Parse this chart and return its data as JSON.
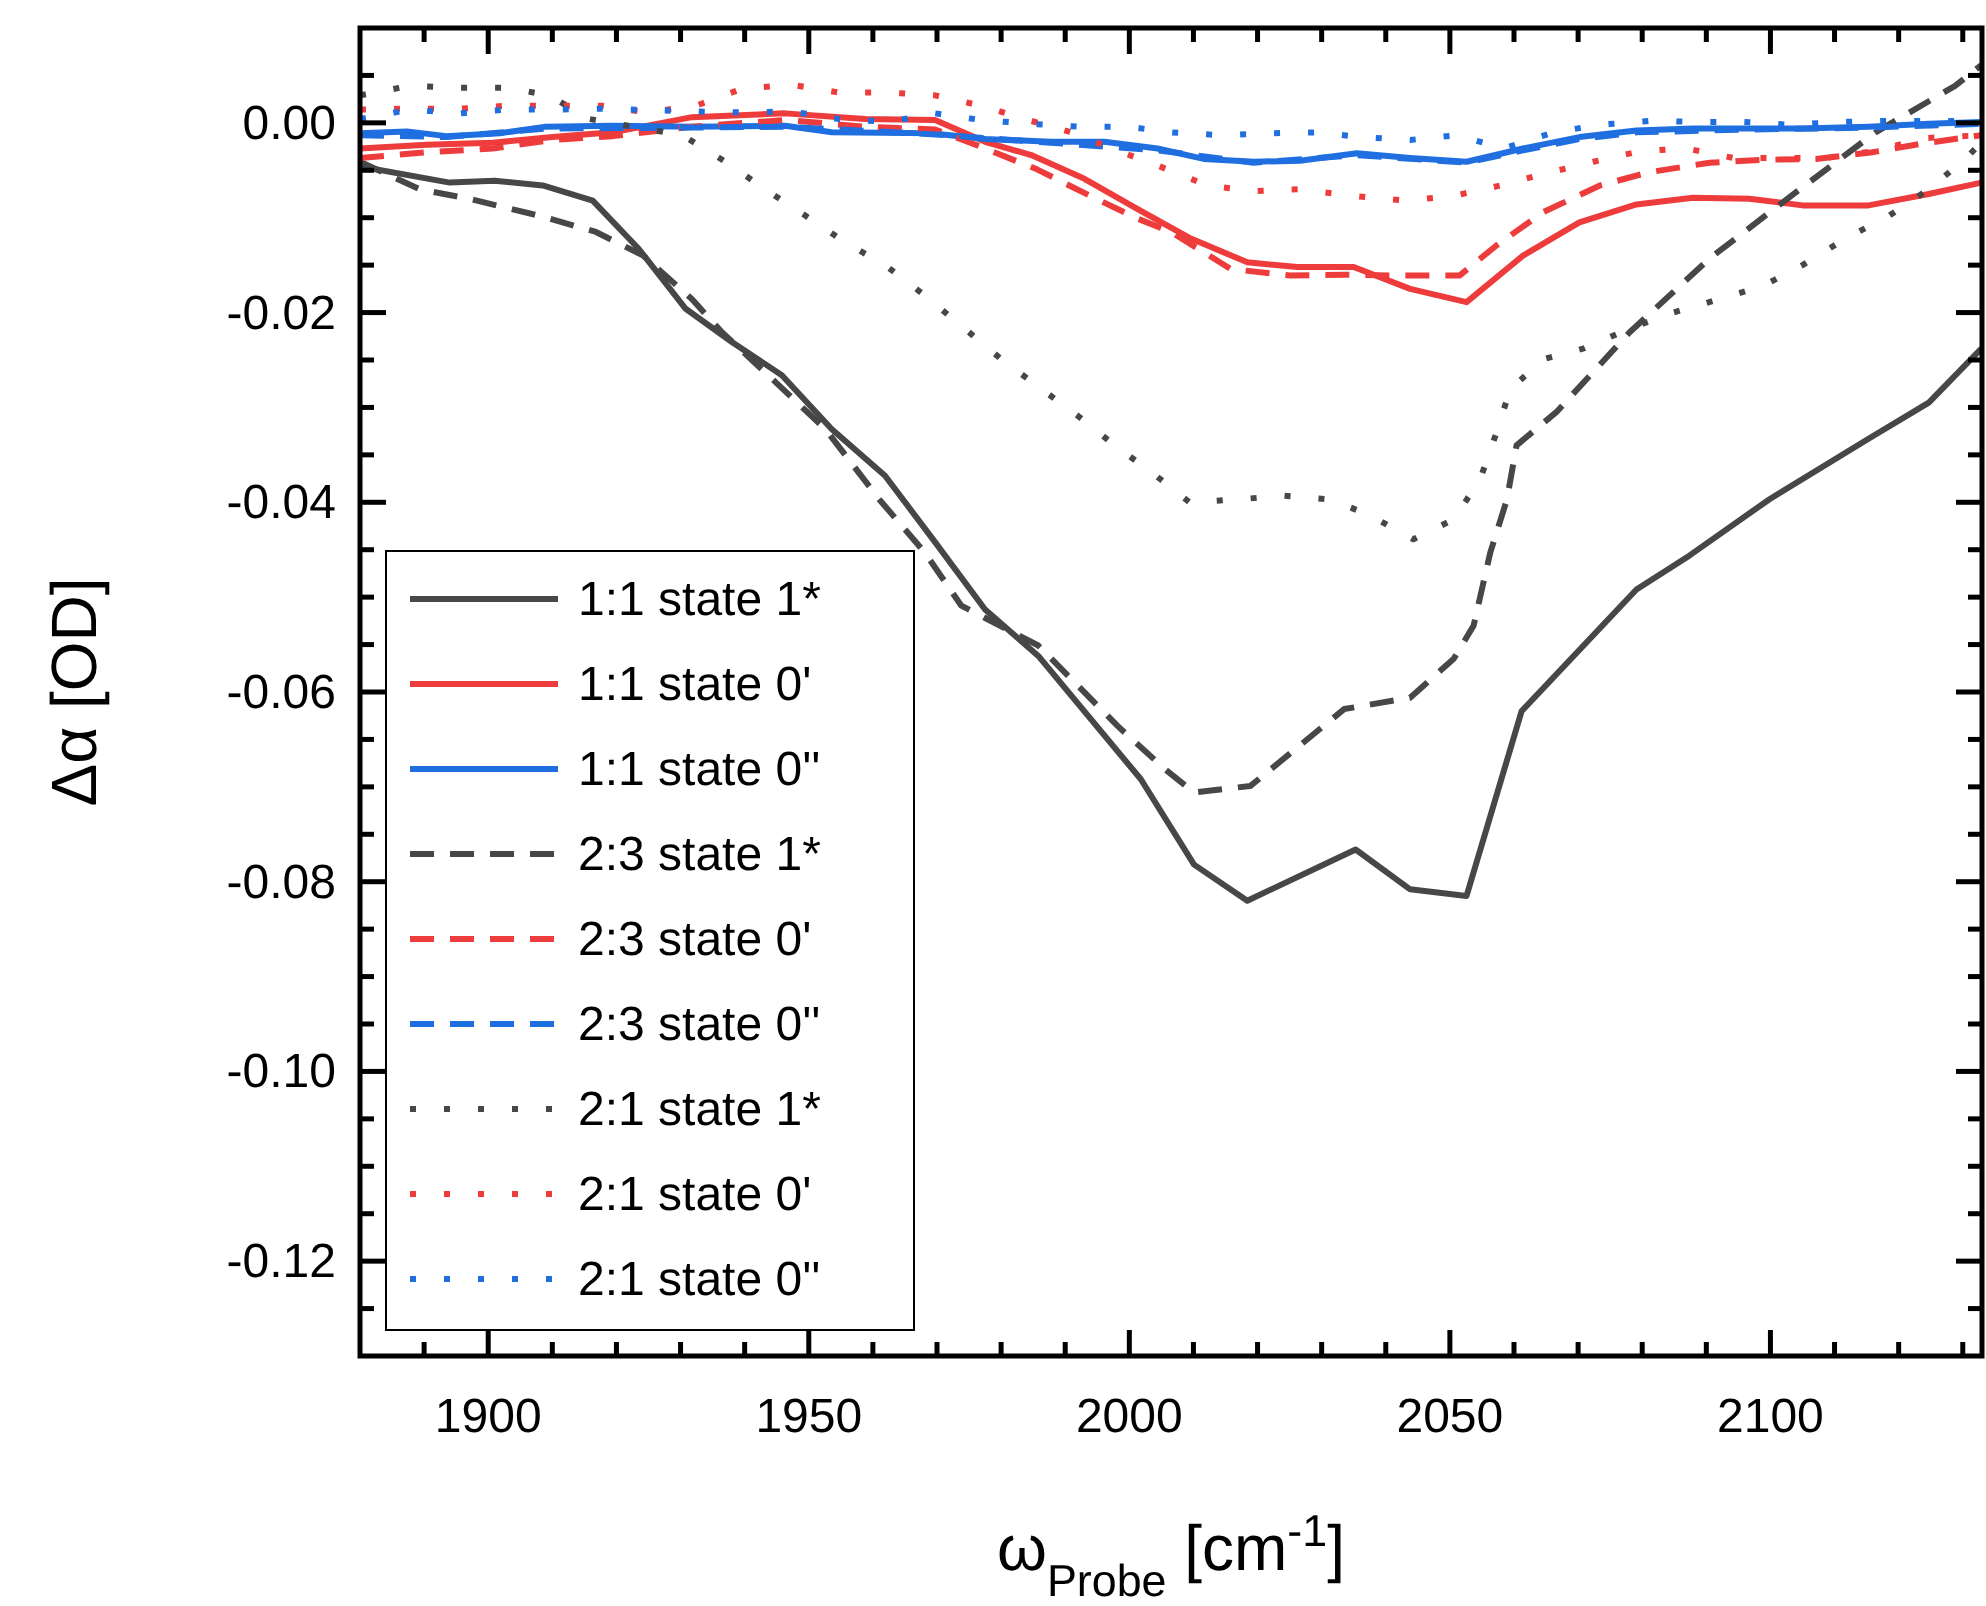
{
  "chart_data": {
    "type": "line",
    "xlabel": "ω$_{Probe}$ [cm$^{-1}$]",
    "ylabel": "Δα [OD]",
    "xlim": [
      1880,
      2133
    ],
    "ylim": [
      -0.13,
      0.01
    ],
    "xticks": [
      {
        "value": 1890,
        "label": null
      },
      1900,
      {
        "value": 1910,
        "label": null
      },
      {
        "value": 1920,
        "label": null
      },
      {
        "value": 1930,
        "label": null
      },
      {
        "value": 1940,
        "label": null
      },
      1950,
      {
        "value": 1960,
        "label": null
      },
      {
        "value": 1970,
        "label": null
      },
      {
        "value": 1980,
        "label": null
      },
      {
        "value": 1990,
        "label": null
      },
      2000,
      {
        "value": 2010,
        "label": null
      },
      {
        "value": 2020,
        "label": null
      },
      {
        "value": 2030,
        "label": null
      },
      {
        "value": 2040,
        "label": null
      },
      2050,
      {
        "value": 2060,
        "label": null
      },
      {
        "value": 2070,
        "label": null
      },
      {
        "value": 2080,
        "label": null
      },
      {
        "value": 2090,
        "label": null
      },
      2100,
      {
        "value": 2110,
        "label": null
      },
      {
        "value": 2120,
        "label": null
      },
      {
        "value": 2130,
        "label": null
      }
    ],
    "yticks": [
      {
        "value": 0.005,
        "label": null
      },
      {
        "value": 0,
        "label": "0.00"
      },
      {
        "value": -0.005,
        "label": null
      },
      {
        "value": -0.01,
        "label": null
      },
      {
        "value": -0.015,
        "label": null
      },
      -0.02,
      {
        "value": -0.025,
        "label": null
      },
      {
        "value": -0.03,
        "label": null
      },
      {
        "value": -0.035,
        "label": null
      },
      -0.04,
      {
        "value": -0.045,
        "label": null
      },
      {
        "value": -0.05,
        "label": null
      },
      {
        "value": -0.055,
        "label": null
      },
      -0.06,
      {
        "value": -0.065,
        "label": null
      },
      {
        "value": -0.07,
        "label": null
      },
      {
        "value": -0.075,
        "label": null
      },
      -0.08,
      {
        "value": -0.085,
        "label": null
      },
      {
        "value": -0.09,
        "label": null
      },
      {
        "value": -0.095,
        "label": null
      },
      {
        "value": -0.1,
        "label": "-0.10"
      },
      {
        "value": -0.105,
        "label": null
      },
      {
        "value": -0.11,
        "label": null
      },
      {
        "value": -0.115,
        "label": null
      },
      -0.12,
      {
        "value": -0.125,
        "label": null
      }
    ],
    "grid": false,
    "legend": "bottom left",
    "marker": "none",
    "series": [
      {
        "name": "1:1 state 1*",
        "color": "#474747",
        "line_style": "solid",
        "x": [
          1880,
          1894,
          1901,
          1908.5,
          1916.3,
          1923.5,
          1930.8,
          1938,
          1945.8,
          1953.6,
          1961.9,
          1969.7,
          1977.5,
          1985.8,
          2001.8,
          2010.1,
          2018.4,
          2035.3,
          2043.8,
          2052.6,
          2061.2,
          2079.1,
          2087.4,
          2099.8,
          2115.3,
          2124.7,
          2132.9
        ],
        "values": [
          -0.0046,
          -0.0063,
          -0.0061,
          -0.0066,
          -0.0082,
          -0.0133,
          -0.0196,
          -0.0231,
          -0.0266,
          -0.0323,
          -0.0372,
          -0.0442,
          -0.0513,
          -0.0562,
          -0.0692,
          -0.0782,
          -0.082,
          -0.0766,
          -0.0808,
          -0.0815,
          -0.062,
          -0.0492,
          -0.0456,
          -0.0397,
          -0.0333,
          -0.0295,
          -0.0238
        ]
      },
      {
        "name": "1:1 state 0'",
        "color": "#ee3b3b",
        "line_style": "solid",
        "x": [
          1880,
          1890.4,
          1900.7,
          1910,
          1919.4,
          1931.8,
          1946.3,
          1958.8,
          1969.7,
          1977.5,
          1984.7,
          1993,
          2001.3,
          2009.6,
          2018.4,
          2026.2,
          2035,
          2043.8,
          2052.6,
          2061.4,
          2070.2,
          2079.1,
          2087.9,
          2096.7,
          2105,
          2115.3,
          2124.7,
          2132.9
        ],
        "values": [
          -0.0027,
          -0.0023,
          -0.0021,
          -0.0015,
          -0.001,
          0.0006,
          0.001,
          0.0004,
          0.0003,
          -0.002,
          -0.0034,
          -0.0059,
          -0.0091,
          -0.0122,
          -0.0147,
          -0.0152,
          -0.0152,
          -0.0175,
          -0.0189,
          -0.014,
          -0.0105,
          -0.0086,
          -0.0079,
          -0.008,
          -0.0087,
          -0.0087,
          -0.0075,
          -0.0063
        ]
      },
      {
        "name": "1:1 state 0''",
        "color": "#1f6fe0",
        "line_style": "solid",
        "x": [
          1880,
          1887.3,
          1893.5,
          1901.8,
          1909,
          1919.4,
          1931.8,
          1946.3,
          1953.6,
          1969.1,
          1977.5,
          1987.8,
          1996.1,
          2004.4,
          2011.6,
          2019.4,
          2026.6,
          2035.5,
          2043.8,
          2052.6,
          2061.4,
          2070.2,
          2079.1,
          2087.9,
          2096.7,
          2105,
          2115.3,
          2124.7,
          2132.9
        ],
        "values": [
          -0.0011,
          -0.0009,
          -0.0014,
          -0.0011,
          -0.0004,
          -0.0003,
          -0.0004,
          -0.0003,
          -0.001,
          -0.0011,
          -0.0017,
          -0.002,
          -0.002,
          -0.0027,
          -0.0038,
          -0.0041,
          -0.004,
          -0.0032,
          -0.0037,
          -0.0041,
          -0.0027,
          -0.0015,
          -0.0008,
          -0.0006,
          -0.0006,
          -0.0006,
          -0.0004,
          -0.0001,
          0.0001
        ]
      },
      {
        "name": "2:3 state 1*",
        "color": "#474747",
        "line_style": "dashed",
        "x": [
          1880,
          1889.3,
          1897,
          1908,
          1916.8,
          1924.2,
          1931.8,
          1936.5,
          1944.3,
          1952.6,
          1961,
          1968.1,
          1973.8,
          1985.8,
          1998.2,
          2005.5,
          2010.1,
          2018.9,
          2033.5,
          2043.8,
          2050.6,
          2053.7,
          2056.3,
          2058.9,
          2060.4,
          2066.6,
          2078,
          2090.5,
          2104,
          2116.4,
          2128.8,
          2132.9
        ],
        "values": [
          -0.0041,
          -0.007,
          -0.008,
          -0.0098,
          -0.0115,
          -0.014,
          -0.0186,
          -0.0221,
          -0.027,
          -0.0323,
          -0.0397,
          -0.0453,
          -0.0509,
          -0.0551,
          -0.0636,
          -0.0681,
          -0.0706,
          -0.0699,
          -0.0618,
          -0.0606,
          -0.0565,
          -0.053,
          -0.0453,
          -0.0397,
          -0.034,
          -0.0305,
          -0.0221,
          -0.0143,
          -0.0073,
          -0.001,
          0.0039,
          0.0061
        ]
      },
      {
        "name": "2:3 state 0'",
        "color": "#ee3b3b",
        "line_style": "dashed",
        "x": [
          1880,
          1890.4,
          1900.7,
          1910,
          1919.4,
          1931.8,
          1946.3,
          1958.8,
          1969.7,
          1977.5,
          1985.6,
          1993.9,
          2001.3,
          2006.5,
          2015.8,
          2025.1,
          2033.4,
          2042.2,
          2051.5,
          2057.3,
          2064.6,
          2073.4,
          2081.1,
          2090.5,
          2098.8,
          2107.1,
          2115.9,
          2123.6,
          2132.9
        ],
        "values": [
          -0.0037,
          -0.0031,
          -0.0027,
          -0.0018,
          -0.0014,
          -0.0004,
          0.0003,
          -0.0004,
          -0.0007,
          -0.0027,
          -0.0049,
          -0.0077,
          -0.0101,
          -0.0115,
          -0.0154,
          -0.0161,
          -0.016,
          -0.0161,
          -0.0161,
          -0.0129,
          -0.0094,
          -0.0066,
          -0.0052,
          -0.0042,
          -0.0039,
          -0.0038,
          -0.0031,
          -0.0022,
          -0.0013
        ]
      },
      {
        "name": "2:3 state 0''",
        "color": "#1f6fe0",
        "line_style": "dashed",
        "x": [
          1880,
          1893.5,
          1909,
          1931.8,
          1946.3,
          1969.1,
          1987.8,
          2004.4,
          2019.4,
          2035.5,
          2052.6,
          2061.4,
          2070.2,
          2079.1,
          2096.7,
          2115.3,
          2132.9
        ],
        "values": [
          -0.0013,
          -0.0015,
          -0.0006,
          -0.0005,
          -0.0004,
          -0.0012,
          -0.0021,
          -0.0029,
          -0.0042,
          -0.0034,
          -0.0042,
          -0.0029,
          -0.0017,
          -0.001,
          -0.0007,
          -0.0005,
          -0.0001
        ]
      },
      {
        "name": "2:1 state 1*",
        "color": "#474747",
        "line_style": "dotted",
        "x": [
          1880,
          1887.8,
          1895.6,
          1903,
          1909.5,
          1915.8,
          1930.3,
          1937,
          1943.2,
          1949.5,
          1955.7,
          1961.9,
          1968.1,
          1973.8,
          1980,
          1985.6,
          1992,
          1997.7,
          2003.4,
          2009.4,
          2016.9,
          2024.1,
          2031.4,
          2037.6,
          2044.3,
          2050.6,
          2054.7,
          2057.3,
          2059.4,
          2064.6,
          2070.8,
          2078,
          2084.8,
          2092,
          2098.8,
          2105,
          2111.7,
          2118.5,
          2124.7,
          2130.4,
          2133
        ],
        "values": [
          0.0029,
          0.0039,
          0.0037,
          0.0037,
          0.0029,
          0.0004,
          -0.0013,
          -0.0041,
          -0.007,
          -0.0098,
          -0.0126,
          -0.015,
          -0.0182,
          -0.0214,
          -0.0249,
          -0.0277,
          -0.0309,
          -0.034,
          -0.0368,
          -0.04,
          -0.0397,
          -0.0393,
          -0.0397,
          -0.0414,
          -0.0439,
          -0.0418,
          -0.0376,
          -0.0326,
          -0.0281,
          -0.0249,
          -0.0238,
          -0.0217,
          -0.02,
          -0.0186,
          -0.0172,
          -0.015,
          -0.0122,
          -0.0098,
          -0.007,
          -0.0038,
          -0.002
        ]
      },
      {
        "name": "2:1 state 0'",
        "color": "#ee3b3b",
        "line_style": "dotted",
        "x": [
          1880,
          1887.8,
          1895.6,
          1902.8,
          1910.1,
          1917.8,
          1924.6,
          1932.4,
          1939.6,
          1947.4,
          1954.7,
          1962.4,
          1969.7,
          1976.9,
          1983.7,
          1991,
          1997.2,
          2004.4,
          2012.2,
          2019.4,
          2026.6,
          2035,
          2043.2,
          2050.6,
          2057.9,
          2065.1,
          2072.4,
          2079.6,
          2086.9,
          2094.2,
          2101.4,
          2108.7,
          2115.9,
          2124.2,
          2133
        ],
        "values": [
          0.0014,
          0.0015,
          0.0015,
          0.0018,
          0.0018,
          0.0018,
          0.0011,
          0.0018,
          0.0036,
          0.004,
          0.0032,
          0.0032,
          0.0029,
          0.0018,
          0.0004,
          -0.001,
          -0.0027,
          -0.0045,
          -0.0066,
          -0.0072,
          -0.007,
          -0.0077,
          -0.0082,
          -0.0077,
          -0.0066,
          -0.0053,
          -0.0041,
          -0.003,
          -0.0027,
          -0.0037,
          -0.0037,
          -0.0037,
          -0.003,
          -0.0016,
          -0.0013
        ]
      },
      {
        "name": "2:1 state 0''",
        "color": "#1f6fe0",
        "line_style": "dotted",
        "x": [
          1880,
          1887.8,
          1895.6,
          1902.8,
          1910.1,
          1917.8,
          1932.4,
          1939.6,
          1947.4,
          1954.7,
          1962.4,
          1969.7,
          1976.9,
          1984.7,
          1991.9,
          1999.7,
          2006.5,
          2014.3,
          2021.6,
          2029.4,
          2036.1,
          2043.8,
          2051.1,
          2058.4,
          2066.2,
          2073.4,
          2081.2,
          2088.5,
          2095.8,
          2103,
          2110.8,
          2118.1,
          2125.4,
          2133
        ],
        "values": [
          0.0004,
          0.0014,
          0.001,
          0.0014,
          0.0014,
          0.0015,
          0.0012,
          0.0011,
          0.0012,
          0.0004,
          0.0001,
          0.001,
          0.0003,
          -0.0001,
          -0.0004,
          -0.0004,
          -0.001,
          -0.0013,
          -0.0011,
          -0.001,
          -0.0015,
          -0.0018,
          -0.0013,
          -0.0027,
          -0.001,
          -0.0002,
          0.0002,
          0.0001,
          0.0001,
          -0.0002,
          0.0001,
          0.0002,
          0.0002,
          0.0002
        ]
      }
    ]
  }
}
